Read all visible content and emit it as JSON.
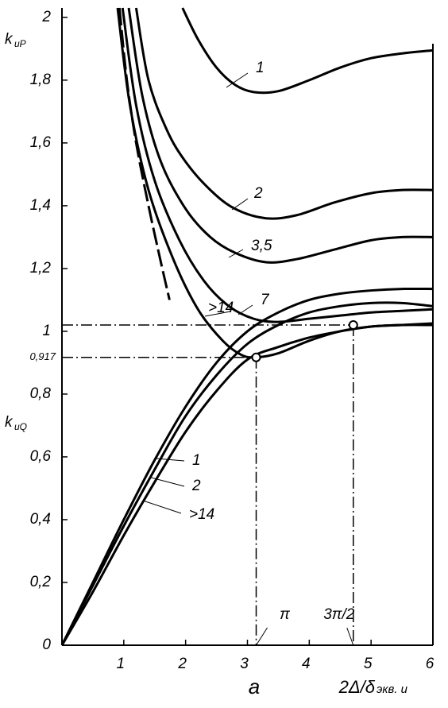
{
  "chart_data": {
    "type": "line",
    "xlim": [
      0,
      6
    ],
    "ylim": [
      0,
      2.03
    ],
    "xticks": [
      1,
      2,
      3,
      4,
      5,
      6
    ],
    "yticks": [
      0,
      {
        "value": 0.2,
        "label": "0,2"
      },
      {
        "value": 0.4,
        "label": "0,4"
      },
      {
        "value": 0.6,
        "label": "0,6"
      },
      {
        "value": 0.8,
        "label": "0,8"
      },
      {
        "value": 0.917,
        "label": "0,917"
      },
      1,
      {
        "value": 1.2,
        "label": "1,2"
      },
      {
        "value": 1.4,
        "label": "1,4"
      },
      {
        "value": 1.6,
        "label": "1,6"
      },
      {
        "value": 1.8,
        "label": "1,8"
      },
      2
    ],
    "ylabel_p": [
      "k",
      "иP"
    ],
    "ylabel_q": [
      "k",
      "иQ"
    ],
    "xlabel": "a",
    "xlabel2": [
      "2Δ/δ",
      "экв. и"
    ],
    "color": "#000000",
    "series": [
      {
        "name": "1",
        "x": [
          1.95,
          2.2,
          2.5,
          2.8,
          3.1,
          3.5,
          4,
          4.5,
          5,
          5.5,
          6
        ],
        "values": [
          2.03,
          1.93,
          1.84,
          1.785,
          1.762,
          1.765,
          1.8,
          1.84,
          1.87,
          1.885,
          1.895
        ]
      },
      {
        "name": "2",
        "x": [
          1.2,
          1.4,
          1.7,
          2,
          2.4,
          2.8,
          3.3,
          3.8,
          4.4,
          5,
          5.5,
          6
        ],
        "values": [
          2.03,
          1.8,
          1.64,
          1.54,
          1.45,
          1.39,
          1.36,
          1.37,
          1.41,
          1.44,
          1.45,
          1.45
        ]
      },
      {
        "name": "3,5",
        "x": [
          1.08,
          1.3,
          1.6,
          2,
          2.4,
          2.8,
          3.3,
          3.8,
          4.4,
          5,
          5.5,
          6
        ],
        "values": [
          2.03,
          1.75,
          1.54,
          1.39,
          1.3,
          1.25,
          1.22,
          1.23,
          1.26,
          1.29,
          1.3,
          1.3
        ]
      },
      {
        "name": "7",
        "x": [
          0.98,
          1.2,
          1.5,
          1.9,
          2.3,
          2.7,
          3.1,
          3.5,
          4,
          4.5,
          5,
          5.5,
          6
        ],
        "values": [
          2.03,
          1.72,
          1.48,
          1.29,
          1.16,
          1.08,
          1.04,
          1.03,
          1.04,
          1.05,
          1.06,
          1.065,
          1.07
        ]
      },
      {
        "name": ">14",
        "x": [
          0.9,
          1.1,
          1.4,
          1.8,
          2.2,
          2.6,
          2.9,
          3.1416,
          3.5,
          4,
          4.5,
          5,
          5.5,
          6
        ],
        "values": [
          2.03,
          1.72,
          1.45,
          1.23,
          1.07,
          0.97,
          0.925,
          0.917,
          0.93,
          0.97,
          1.0,
          1.015,
          1.02,
          1.02
        ]
      },
      {
        "name": "1",
        "x": [
          0,
          0.5,
          1,
          1.5,
          2,
          2.5,
          3,
          3.5,
          4,
          4.5,
          5,
          5.5,
          6
        ],
        "values": [
          0,
          0.2,
          0.4,
          0.59,
          0.76,
          0.9,
          1.0,
          1.06,
          1.1,
          1.12,
          1.13,
          1.135,
          1.135
        ]
      },
      {
        "name": "2",
        "x": [
          0,
          0.5,
          1,
          1.5,
          2,
          2.5,
          3,
          3.5,
          4,
          4.5,
          5,
          5.5,
          6
        ],
        "values": [
          0,
          0.19,
          0.38,
          0.56,
          0.73,
          0.86,
          0.96,
          1.02,
          1.06,
          1.08,
          1.09,
          1.09,
          1.08
        ]
      },
      {
        "name": ">14",
        "x": [
          0,
          0.5,
          1,
          1.5,
          2,
          2.5,
          3,
          3.5,
          4,
          4.5,
          5,
          5.5,
          6
        ],
        "values": [
          0,
          0.17,
          0.35,
          0.52,
          0.68,
          0.81,
          0.91,
          0.95,
          0.98,
          1.0,
          1.015,
          1.02,
          1.025
        ]
      },
      {
        "x": [
          0.93,
          1.05,
          1.2,
          1.4,
          1.6,
          1.74
        ],
        "values": [
          2.03,
          1.8,
          1.6,
          1.4,
          1.22,
          1.1
        ],
        "dashed": true
      }
    ],
    "hlines": [
      {
        "value": 0.917,
        "to": 3.1416
      },
      {
        "value": 1.02,
        "to": 4.7124
      }
    ],
    "vlines": [
      {
        "value": 3.1416,
        "label": "π",
        "from": 0.917
      },
      {
        "value": 4.7124,
        "label": "3π/2",
        "from": 1.02
      }
    ],
    "points": [
      {
        "x": 3.1416,
        "y": 0.917
      },
      {
        "x": 4.7124,
        "y": 1.02
      }
    ]
  }
}
